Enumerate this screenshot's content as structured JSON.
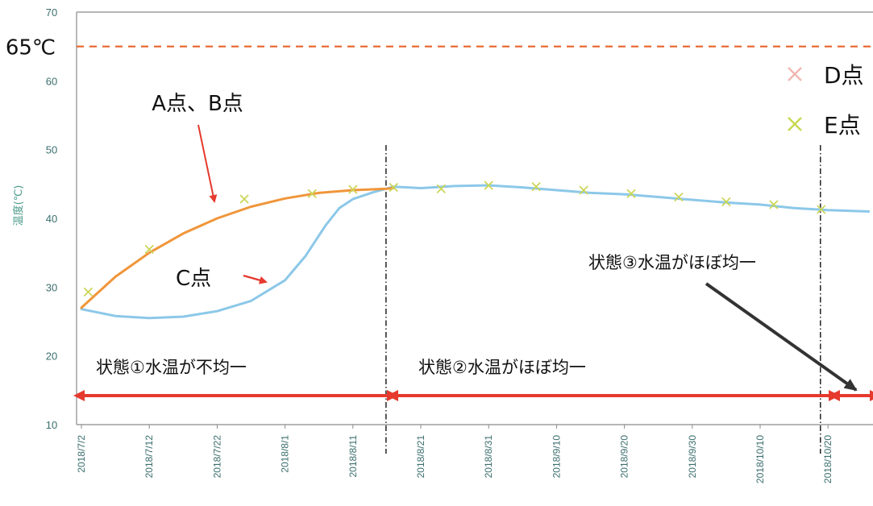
{
  "chart_data": {
    "type": "line",
    "ylabel": "温度(℃)",
    "ylim": [
      10,
      70
    ],
    "yticks": [
      10,
      20,
      30,
      40,
      50,
      60,
      70
    ],
    "xlim": [
      "2018/7/1",
      "2018/10/27"
    ],
    "xticks": [
      "2018/7/2",
      "2018/7/12",
      "2018/7/22",
      "2018/8/1",
      "2018/8/11",
      "2018/8/21",
      "2018/8/31",
      "2018/9/10",
      "2018/9/20",
      "2018/9/30",
      "2018/10/10",
      "2018/10/20"
    ],
    "reference_line": {
      "label": "65℃",
      "value": 65,
      "color": "#e8632b"
    },
    "colors": {
      "orange": "#f0963a",
      "blue": "#8cc8e8",
      "red_arrow": "#e63a2e",
      "gray_arrow": "#333333"
    },
    "series": [
      {
        "name": "A点、B点",
        "color": "#f0963a",
        "x": [
          "2018/7/2",
          "2018/7/7",
          "2018/7/12",
          "2018/7/17",
          "2018/7/22",
          "2018/7/27",
          "2018/8/1",
          "2018/8/6",
          "2018/8/11",
          "2018/8/16",
          "2018/8/17"
        ],
        "y": [
          27,
          31.5,
          35,
          37.8,
          40,
          41.7,
          42.9,
          43.7,
          44.1,
          44.3,
          44.4
        ]
      },
      {
        "name": "C点",
        "color": "#8cc8e8",
        "x": [
          "2018/7/2",
          "2018/7/7",
          "2018/7/12",
          "2018/7/17",
          "2018/7/22",
          "2018/7/27",
          "2018/8/1",
          "2018/8/4",
          "2018/8/7",
          "2018/8/9",
          "2018/8/11",
          "2018/8/14",
          "2018/8/17",
          "2018/8/21",
          "2018/8/26",
          "2018/8/31",
          "2018/9/5",
          "2018/9/10",
          "2018/9/15",
          "2018/9/20",
          "2018/9/25",
          "2018/9/30",
          "2018/10/5",
          "2018/10/10",
          "2018/10/15",
          "2018/10/20",
          "2018/10/26"
        ],
        "y": [
          26.8,
          25.8,
          25.5,
          25.7,
          26.5,
          28,
          31,
          34.5,
          39,
          41.5,
          42.8,
          43.8,
          44.6,
          44.4,
          44.7,
          44.8,
          44.5,
          44.1,
          43.7,
          43.5,
          43.1,
          42.7,
          42.3,
          42,
          41.5,
          41.2,
          41
        ]
      },
      {
        "name": "D点",
        "marker": "x",
        "color": "#f0b8b0",
        "x": [
          "2018/7/3",
          "2018/7/12",
          "2018/7/26",
          "2018/8/5",
          "2018/8/11",
          "2018/8/17",
          "2018/8/24",
          "2018/8/31",
          "2018/9/7",
          "2018/9/14",
          "2018/9/21",
          "2018/9/28",
          "2018/10/5",
          "2018/10/12",
          "2018/10/19"
        ],
        "y": [
          29.3,
          35.5,
          42.8,
          43.6,
          44.2,
          44.5,
          44.3,
          44.8,
          44.6,
          44.1,
          43.6,
          43.1,
          42.4,
          42,
          41.3
        ]
      },
      {
        "name": "E点",
        "marker": "x",
        "color": "#c8d850",
        "x": [
          "2018/7/3",
          "2018/7/12",
          "2018/7/26",
          "2018/8/5",
          "2018/8/11",
          "2018/8/17",
          "2018/8/24",
          "2018/8/31",
          "2018/9/7",
          "2018/9/14",
          "2018/9/21",
          "2018/9/28",
          "2018/10/5",
          "2018/10/12",
          "2018/10/19"
        ],
        "y": [
          29.3,
          35.5,
          42.8,
          43.6,
          44.2,
          44.5,
          44.3,
          44.8,
          44.6,
          44.1,
          43.6,
          43.1,
          42.4,
          42,
          41.3
        ]
      }
    ],
    "boundaries": [
      "2018/8/16",
      "2018/10/19"
    ],
    "states": [
      {
        "label": "状態①水温が不均一",
        "from": "2018/7/1",
        "to": "2018/8/15"
      },
      {
        "label": "状態②水温がほぼ均一",
        "from": "2018/8/17",
        "to": "2018/10/18"
      },
      {
        "label": "状態③水温がほぼ均一",
        "from": "2018/10/20",
        "to": "2018/10/27"
      }
    ],
    "annotations": {
      "ab_label": "A点、B点",
      "c_label": "C点"
    },
    "legend": [
      {
        "name": "D点",
        "color": "#f0b8b0"
      },
      {
        "name": "E点",
        "color": "#c8d850"
      }
    ]
  }
}
